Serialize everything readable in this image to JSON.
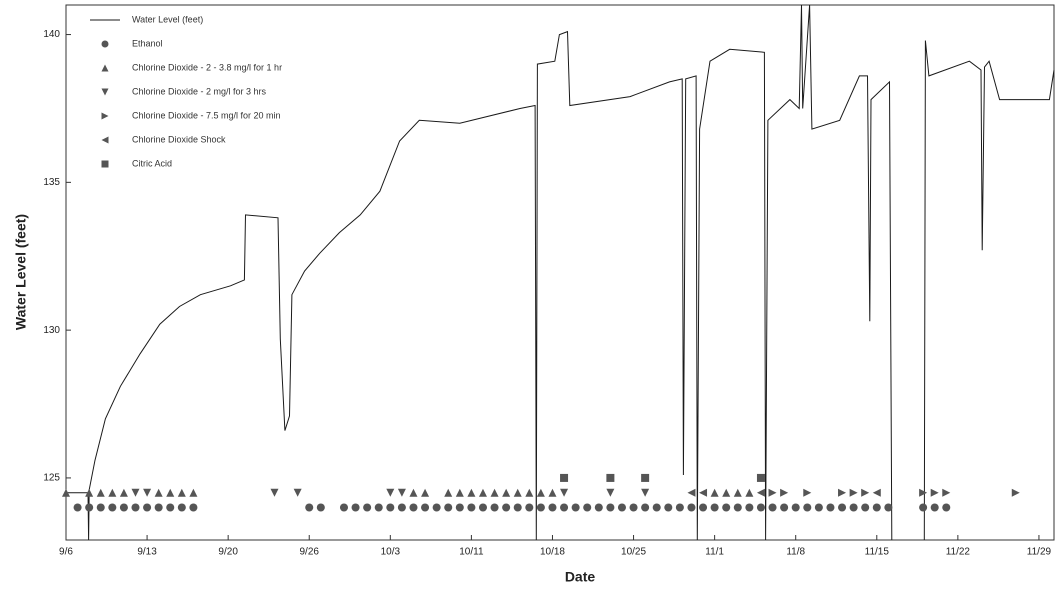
{
  "chart_data": {
    "type": "line",
    "y_label": "Water Level (feet)",
    "x_label": "Date",
    "xlim": [
      0,
      85.3
    ],
    "ylim": [
      122.9,
      141
    ],
    "xticks": [
      {
        "value": 0,
        "label": "9/6"
      },
      {
        "value": 7,
        "label": "9/13"
      },
      {
        "value": 14,
        "label": "9/20"
      },
      {
        "value": 21,
        "label": "9/26"
      },
      {
        "value": 28,
        "label": "10/3"
      },
      {
        "value": 35,
        "label": "10/11"
      },
      {
        "value": 42,
        "label": "10/18"
      },
      {
        "value": 49,
        "label": "10/25"
      },
      {
        "value": 56,
        "label": "11/1"
      },
      {
        "value": 63,
        "label": "11/8"
      },
      {
        "value": 70,
        "label": "11/15"
      },
      {
        "value": 77,
        "label": "11/22"
      },
      {
        "value": 84,
        "label": "11/29"
      }
    ],
    "yticks": [
      125,
      130,
      135,
      140
    ],
    "series": [
      {
        "name": "Water Level (feet)",
        "color": "#1a1a1a",
        "marker": "line",
        "x": [
          0,
          1.9,
          1.95,
          2.0,
          2.5,
          3.4,
          4.7,
          6.4,
          8.1,
          9.8,
          11.6,
          14.2,
          15.4,
          15.5,
          18.3,
          18.5,
          18.9,
          19.3,
          19.5,
          20.6,
          21.9,
          23.6,
          25.4,
          27.1,
          28.8,
          30.5,
          34.0,
          39.2,
          40.5,
          40.6,
          40.7,
          42.2,
          42.6,
          43.3,
          43.5,
          48.7,
          52.1,
          53.2,
          53.3,
          53.5,
          54.4,
          54.5,
          54.7,
          55.6,
          57.3,
          60.3,
          60.4,
          60.6,
          62.5,
          63.3,
          63.5,
          63.6,
          64.2,
          64.4,
          66.8,
          68.5,
          69.2,
          69.4,
          69.5,
          71.1,
          71.3,
          72.5,
          74.1,
          74.2,
          74.5,
          78.0,
          79.0,
          79.1,
          79.3,
          79.7,
          80.6,
          84.9,
          85.3
        ],
        "values": [
          124.5,
          124.5,
          122.9,
          124.6,
          125.6,
          127.0,
          128.1,
          129.2,
          130.2,
          130.8,
          131.2,
          131.5,
          131.7,
          133.9,
          133.8,
          129.7,
          126.6,
          127.1,
          131.2,
          132.0,
          132.6,
          133.3,
          133.9,
          134.7,
          136.4,
          137.1,
          137.0,
          137.5,
          137.6,
          122.9,
          139.0,
          139.1,
          140.0,
          140.1,
          137.6,
          137.9,
          138.4,
          138.5,
          125.1,
          138.5,
          138.6,
          122.9,
          136.8,
          139.1,
          139.5,
          139.4,
          122.9,
          137.1,
          137.8,
          137.5,
          141,
          137.5,
          141,
          136.8,
          137.1,
          138.6,
          138.6,
          130.3,
          137.8,
          138.4,
          122.9,
          null,
          122.9,
          139.8,
          138.6,
          139.1,
          138.8,
          132.7,
          138.9,
          139.1,
          137.8,
          137.8,
          138.8
        ]
      },
      {
        "name": "Ethanol",
        "color": "#555555",
        "marker": "circle",
        "x": [
          1,
          2,
          3,
          4,
          5,
          6,
          7,
          8,
          9,
          10,
          11,
          21,
          22,
          24,
          25,
          26,
          27,
          28,
          29,
          30,
          31,
          32,
          33,
          34,
          35,
          36,
          37,
          38,
          39,
          40,
          41,
          42,
          43,
          44,
          45,
          46,
          47,
          48,
          49,
          50,
          51,
          52,
          53,
          54,
          55,
          56,
          57,
          58,
          59,
          60,
          61,
          62,
          63,
          64,
          65,
          66,
          67,
          68,
          69,
          70,
          71,
          74,
          75,
          76
        ],
        "values": [
          124,
          124,
          124,
          124,
          124,
          124,
          124,
          124,
          124,
          124,
          124,
          124,
          124,
          124,
          124,
          124,
          124,
          124,
          124,
          124,
          124,
          124,
          124,
          124,
          124,
          124,
          124,
          124,
          124,
          124,
          124,
          124,
          124,
          124,
          124,
          124,
          124,
          124,
          124,
          124,
          124,
          124,
          124,
          124,
          124,
          124,
          124,
          124,
          124,
          124,
          124,
          124,
          124,
          124,
          124,
          124,
          124,
          124,
          124,
          124,
          124,
          124,
          124,
          124
        ]
      },
      {
        "name": "Chlorine Dioxide - 2 - 3.8 mg/l for 1 hr",
        "color": "#555555",
        "marker": "triangle-up",
        "x": [
          0,
          2,
          3,
          4,
          5,
          8,
          9,
          10,
          11,
          30,
          31,
          33,
          34,
          35,
          36,
          37,
          38,
          39,
          40,
          41,
          42,
          56,
          57,
          58,
          59
        ],
        "values": [
          124.5,
          124.5,
          124.5,
          124.5,
          124.5,
          124.5,
          124.5,
          124.5,
          124.5,
          124.5,
          124.5,
          124.5,
          124.5,
          124.5,
          124.5,
          124.5,
          124.5,
          124.5,
          124.5,
          124.5,
          124.5,
          124.5,
          124.5,
          124.5,
          124.5
        ]
      },
      {
        "name": "Chlorine Dioxide - 2 mg/l for 3 hrs",
        "color": "#555555",
        "marker": "triangle-down",
        "x": [
          6,
          7,
          18,
          20,
          28,
          29,
          43,
          47,
          50
        ],
        "values": [
          124.5,
          124.5,
          124.5,
          124.5,
          124.5,
          124.5,
          124.5,
          124.5,
          124.5
        ]
      },
      {
        "name": "Chlorine Dioxide - 7.5 mg/l for 20 min",
        "color": "#555555",
        "marker": "triangle-right",
        "x": [
          61,
          62,
          64,
          67,
          68,
          69,
          74,
          75,
          76,
          82
        ],
        "values": [
          124.5,
          124.5,
          124.5,
          124.5,
          124.5,
          124.5,
          124.5,
          124.5,
          124.5,
          124.5
        ]
      },
      {
        "name": "Chlorine Dioxide Shock",
        "color": "#555555",
        "marker": "triangle-left",
        "x": [
          54,
          55,
          60,
          70
        ],
        "values": [
          124.5,
          124.5,
          124.5,
          124.5
        ]
      },
      {
        "name": "Citric Acid",
        "color": "#555555",
        "marker": "square",
        "x": [
          43,
          47,
          50,
          60
        ],
        "values": [
          125,
          125,
          125,
          125
        ]
      }
    ]
  }
}
